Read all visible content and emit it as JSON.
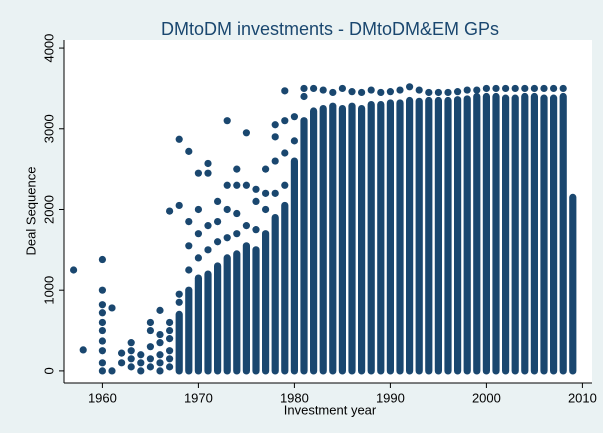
{
  "chart_data": {
    "type": "scatter",
    "title": "DMtoDM investments - DMtoDM&EM GPs",
    "x_label": "Investment year",
    "y_label": "Deal Sequence",
    "color": "#1a476f",
    "xlim": [
      1956,
      2011
    ],
    "ylim": [
      -150,
      4100
    ],
    "xticks": [
      1960,
      1970,
      1980,
      1990,
      2000,
      2010
    ],
    "yticks": [
      0,
      1000,
      2000,
      3000,
      4000
    ],
    "points": {
      "x": [
        1957,
        1958,
        1960,
        1960,
        1960,
        1960,
        1960,
        1960,
        1960,
        1960,
        1960,
        1960,
        1961,
        1961,
        1962,
        1962,
        1963,
        1963,
        1963,
        1963,
        1964,
        1964,
        1964,
        1965,
        1965,
        1965,
        1965,
        1965,
        1966,
        1966,
        1966,
        1966,
        1966,
        1966,
        1967,
        1967,
        1967,
        1967,
        1967,
        1967,
        1967,
        1968,
        1968,
        1968,
        1968,
        1969,
        1969,
        1969,
        1969,
        1970,
        1970,
        1970,
        1970,
        1971,
        1971,
        1971,
        1971,
        1972,
        1972,
        1972,
        1973,
        1973,
        1973,
        1973,
        1974,
        1974,
        1974,
        1974,
        1975,
        1975,
        1975,
        1976,
        1976,
        1976,
        1977,
        1977,
        1977,
        1978,
        1978,
        1978,
        1978,
        1979,
        1979,
        1979,
        1979,
        1980,
        1980,
        1981,
        1981,
        1982,
        1983,
        1984,
        1985,
        1986,
        1987,
        1988,
        1989,
        1990,
        1991,
        1992,
        1993,
        1994,
        1995,
        1996,
        1997,
        1998,
        1999,
        2000,
        2001,
        2002,
        2003,
        2004,
        2005,
        2006,
        2007,
        2008
      ],
      "y": [
        1250,
        260,
        0,
        100,
        250,
        370,
        500,
        600,
        720,
        820,
        1000,
        1380,
        0,
        780,
        100,
        220,
        50,
        150,
        250,
        350,
        0,
        100,
        200,
        50,
        150,
        300,
        500,
        600,
        0,
        100,
        200,
        350,
        450,
        750,
        50,
        150,
        250,
        400,
        500,
        600,
        1980,
        850,
        950,
        2050,
        2870,
        1250,
        1550,
        1850,
        2720,
        1400,
        1700,
        2000,
        2450,
        1500,
        1800,
        2450,
        2570,
        1600,
        1850,
        2100,
        1650,
        2000,
        2300,
        3100,
        1700,
        1950,
        2300,
        2500,
        1800,
        2300,
        2950,
        1750,
        2100,
        2250,
        2000,
        2200,
        2500,
        2200,
        2600,
        2900,
        3050,
        2300,
        2700,
        3100,
        3470,
        2850,
        3150,
        3400,
        3500,
        3500,
        3480,
        3450,
        3500,
        3460,
        3450,
        3480,
        3450,
        3460,
        3480,
        3520,
        3480,
        3450,
        3450,
        3450,
        3460,
        3480,
        3480,
        3500,
        3500,
        3500,
        3500,
        3500,
        3500,
        3500,
        3500,
        3500
      ]
    },
    "ranges": {
      "x": [
        1968,
        1969,
        1970,
        1971,
        1972,
        1973,
        1974,
        1975,
        1976,
        1977,
        1978,
        1979,
        1980,
        1981,
        1982,
        1983,
        1984,
        1985,
        1986,
        1987,
        1988,
        1989,
        1990,
        1991,
        1992,
        1993,
        1994,
        1995,
        1996,
        1997,
        1998,
        1999,
        2000,
        2001,
        2002,
        2003,
        2004,
        2005,
        2006,
        2007,
        2008,
        2009
      ],
      "low": [
        0,
        0,
        0,
        0,
        0,
        0,
        0,
        0,
        0,
        0,
        0,
        0,
        0,
        0,
        0,
        0,
        0,
        0,
        0,
        0,
        0,
        0,
        0,
        0,
        0,
        0,
        0,
        0,
        0,
        0,
        0,
        0,
        0,
        0,
        0,
        0,
        0,
        0,
        0,
        0,
        0,
        0
      ],
      "high": [
        700,
        1000,
        1150,
        1200,
        1300,
        1400,
        1450,
        1550,
        1500,
        1700,
        1900,
        2050,
        2600,
        3100,
        3220,
        3250,
        3280,
        3250,
        3280,
        3250,
        3300,
        3300,
        3320,
        3320,
        3350,
        3340,
        3350,
        3350,
        3350,
        3360,
        3370,
        3400,
        3400,
        3400,
        3380,
        3380,
        3400,
        3400,
        3380,
        3380,
        3400,
        2150
      ]
    }
  }
}
